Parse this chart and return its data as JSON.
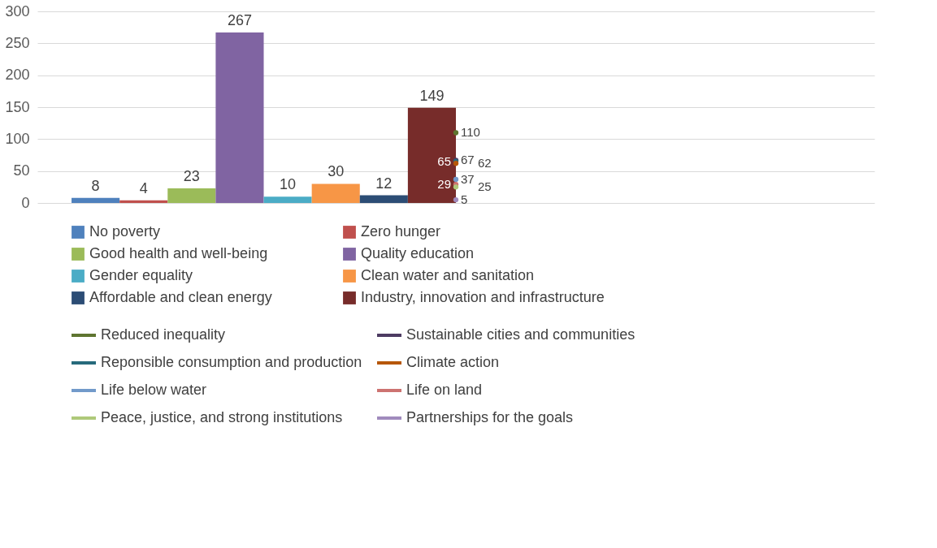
{
  "chart_data": {
    "type": "bar",
    "categories": [
      null
    ],
    "ylim": [
      0,
      300
    ],
    "yticks": [
      0,
      50,
      100,
      150,
      200,
      250,
      300
    ],
    "grid": "y",
    "legend": "bottom",
    "data_labels": true,
    "series": [
      {
        "name": "No poverty",
        "color": "#4f81bd",
        "values": [
          8
        ]
      },
      {
        "name": "Zero hunger",
        "color": "#c0504d",
        "values": [
          4
        ]
      },
      {
        "name": "Good health and well-being",
        "color": "#9bbb59",
        "values": [
          23
        ]
      },
      {
        "name": "Quality education",
        "color": "#8064a2",
        "values": [
          267
        ]
      },
      {
        "name": "Gender equality",
        "color": "#4bacc6",
        "values": [
          10
        ]
      },
      {
        "name": "Clean water and sanitation",
        "color": "#f79646",
        "values": [
          30
        ]
      },
      {
        "name": "Affordable and clean energy",
        "color": "#2c4d75",
        "values": [
          12
        ]
      },
      {
        "name": "Industry, innovation and infrastructure",
        "color": "#772c2a",
        "values": [
          149
        ]
      },
      {
        "name": "Reduced inequality",
        "type": "line",
        "marker": "circle",
        "color": "#5f7530",
        "values": [
          110
        ]
      },
      {
        "name": "Sustainable cities and communities",
        "type": "line",
        "marker": "circle",
        "color": "#4d3b62",
        "values": [
          67
        ]
      },
      {
        "name": "Reponsible consumption and production",
        "type": "line",
        "marker": "circle",
        "color": "#276a7c",
        "values": [
          65
        ]
      },
      {
        "name": "Climate action",
        "type": "line",
        "marker": "circle",
        "color": "#b65708",
        "values": [
          62
        ]
      },
      {
        "name": "Life below water",
        "type": "line",
        "marker": "circle",
        "color": "#729aca",
        "values": [
          37
        ]
      },
      {
        "name": "Life on land",
        "type": "line",
        "marker": "circle",
        "color": "#cd7371",
        "values": [
          29
        ]
      },
      {
        "name": "Peace, justice, and strong institutions",
        "type": "line",
        "marker": "circle",
        "color": "#afc97a",
        "values": [
          25
        ]
      },
      {
        "name": "Partnerships for the goals",
        "type": "line",
        "marker": "circle",
        "color": "#a08bbd",
        "values": [
          5
        ]
      }
    ]
  }
}
